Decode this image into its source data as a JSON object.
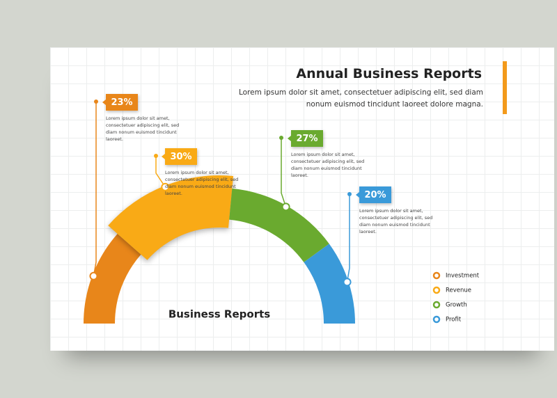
{
  "chart_data": {
    "type": "half-donut",
    "title": "Annual Business Reports",
    "subtitle": "Lorem ipsum dolor sit amet, consectetuer adipiscing elit, sed diam nonum euismod tincidunt laoreet dolore magna.",
    "center_label": "Business Reports",
    "categories": [
      "Investment",
      "Revenue",
      "Growth",
      "Profit"
    ],
    "values": [
      23,
      30,
      27,
      20
    ],
    "value_labels": [
      "23%",
      "30%",
      "27%",
      "20%"
    ],
    "colors": [
      "#e8861a",
      "#f9aa16",
      "#6aaa2f",
      "#3a9ad9"
    ],
    "annotations": [
      "Lorem ipsum dolor sit amet, consectetuer adipiscing elit, sed diam nonum euismod tincidunt laoreet.",
      "Lorem ipsum dolor sit amet, consectetuer adipiscing elit, sed diam nonum euismod tincidunt laoreet.",
      "Lorem ipsum dolor sit amet, consectetuer adipiscing elit, sed diam nonum euismod tincidunt laoreet.",
      "Lorem ipsum dolor sit amet, consectetuer adipiscing elit, sed diam nonum euismod tincidunt laoreet."
    ]
  }
}
